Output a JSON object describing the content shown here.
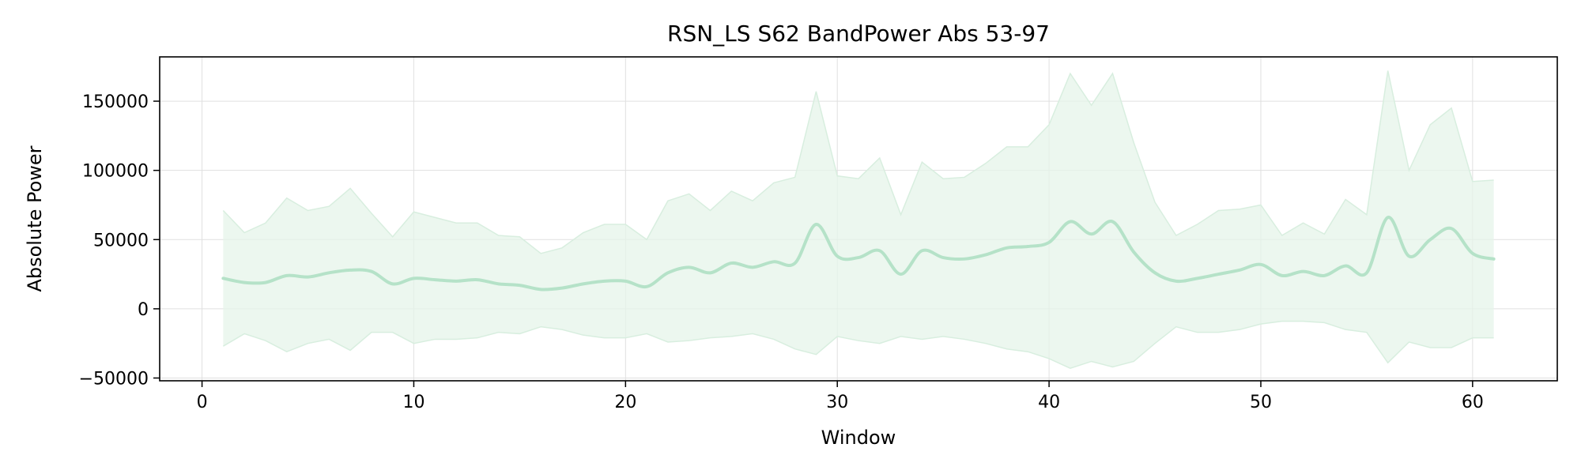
{
  "chart_data": {
    "type": "line",
    "title": "RSN_LS S62 BandPower Abs 53-97",
    "xlabel": "Window",
    "ylabel": "Absolute Power",
    "xlim": [
      -2,
      64
    ],
    "ylim": [
      -52000,
      182000
    ],
    "xticks": [
      0,
      10,
      20,
      30,
      40,
      50,
      60
    ],
    "yticks": [
      -50000,
      0,
      50000,
      100000,
      150000
    ],
    "xtick_labels": [
      "0",
      "10",
      "20",
      "30",
      "40",
      "50",
      "60"
    ],
    "ytick_labels": [
      "−50000",
      "0",
      "50000",
      "100000",
      "150000"
    ],
    "grid": true,
    "colors": {
      "line": "#b5e2c8",
      "band": "#e6f4ea",
      "band_edge": "#d8eedf",
      "grid": "#e0e0e0"
    },
    "series": [
      {
        "role": "mean",
        "x": [
          1,
          2,
          3,
          4,
          5,
          6,
          7,
          8,
          9,
          10,
          11,
          12,
          13,
          14,
          15,
          16,
          17,
          18,
          19,
          20,
          21,
          22,
          23,
          24,
          25,
          26,
          27,
          28,
          29,
          30,
          31,
          32,
          33,
          34,
          35,
          36,
          37,
          38,
          39,
          40,
          41,
          42,
          43,
          44,
          45,
          46,
          47,
          48,
          49,
          50,
          51,
          52,
          53,
          54,
          55,
          56,
          57,
          58,
          59,
          60,
          61
        ],
        "values": [
          22000,
          19000,
          19000,
          24000,
          23000,
          26000,
          28000,
          27000,
          18000,
          22000,
          21000,
          20000,
          21000,
          18000,
          17000,
          14000,
          15000,
          18000,
          20000,
          20000,
          16000,
          26000,
          30000,
          26000,
          33000,
          30000,
          34000,
          33000,
          61000,
          38000,
          37000,
          42000,
          25000,
          42000,
          37000,
          36000,
          39000,
          44000,
          45000,
          48000,
          63000,
          54000,
          63000,
          41000,
          26000,
          20000,
          22000,
          25000,
          28000,
          32000,
          24000,
          27000,
          24000,
          31000,
          26000,
          66000,
          38000,
          50000,
          58000,
          40000,
          36000
        ]
      },
      {
        "role": "upper",
        "x": [
          1,
          2,
          3,
          4,
          5,
          6,
          7,
          8,
          9,
          10,
          11,
          12,
          13,
          14,
          15,
          16,
          17,
          18,
          19,
          20,
          21,
          22,
          23,
          24,
          25,
          26,
          27,
          28,
          29,
          30,
          31,
          32,
          33,
          34,
          35,
          36,
          37,
          38,
          39,
          40,
          41,
          42,
          43,
          44,
          45,
          46,
          47,
          48,
          49,
          50,
          51,
          52,
          53,
          54,
          55,
          56,
          57,
          58,
          59,
          60,
          61
        ],
        "values": [
          71000,
          55000,
          62000,
          80000,
          71000,
          74000,
          87000,
          69000,
          52000,
          70000,
          66000,
          62000,
          62000,
          53000,
          52000,
          40000,
          44000,
          55000,
          61000,
          61000,
          50000,
          78000,
          83000,
          71000,
          85000,
          78000,
          91000,
          95000,
          157000,
          96000,
          94000,
          109000,
          68000,
          106000,
          94000,
          95000,
          105000,
          117000,
          117000,
          133000,
          170000,
          147000,
          170000,
          120000,
          77000,
          53000,
          61000,
          71000,
          72000,
          75000,
          53000,
          62000,
          54000,
          79000,
          68000,
          172000,
          100000,
          133000,
          145000,
          92000,
          93000
        ]
      },
      {
        "role": "lower",
        "x": [
          1,
          2,
          3,
          4,
          5,
          6,
          7,
          8,
          9,
          10,
          11,
          12,
          13,
          14,
          15,
          16,
          17,
          18,
          19,
          20,
          21,
          22,
          23,
          24,
          25,
          26,
          27,
          28,
          29,
          30,
          31,
          32,
          33,
          34,
          35,
          36,
          37,
          38,
          39,
          40,
          41,
          42,
          43,
          44,
          45,
          46,
          47,
          48,
          49,
          50,
          51,
          52,
          53,
          54,
          55,
          56,
          57,
          58,
          59,
          60,
          61
        ],
        "values": [
          -27000,
          -18000,
          -23000,
          -31000,
          -25000,
          -22000,
          -30000,
          -17000,
          -17000,
          -25000,
          -22000,
          -22000,
          -21000,
          -17000,
          -18000,
          -13000,
          -15000,
          -19000,
          -21000,
          -21000,
          -18000,
          -24000,
          -23000,
          -21000,
          -20000,
          -18000,
          -22000,
          -29000,
          -33000,
          -20000,
          -23000,
          -25000,
          -20000,
          -22000,
          -20000,
          -22000,
          -25000,
          -29000,
          -31000,
          -36000,
          -43000,
          -38000,
          -42000,
          -38000,
          -25000,
          -13000,
          -17000,
          -17000,
          -15000,
          -11000,
          -9000,
          -9000,
          -10000,
          -15000,
          -17000,
          -39000,
          -24000,
          -28000,
          -28000,
          -21000,
          -21000
        ]
      }
    ]
  }
}
